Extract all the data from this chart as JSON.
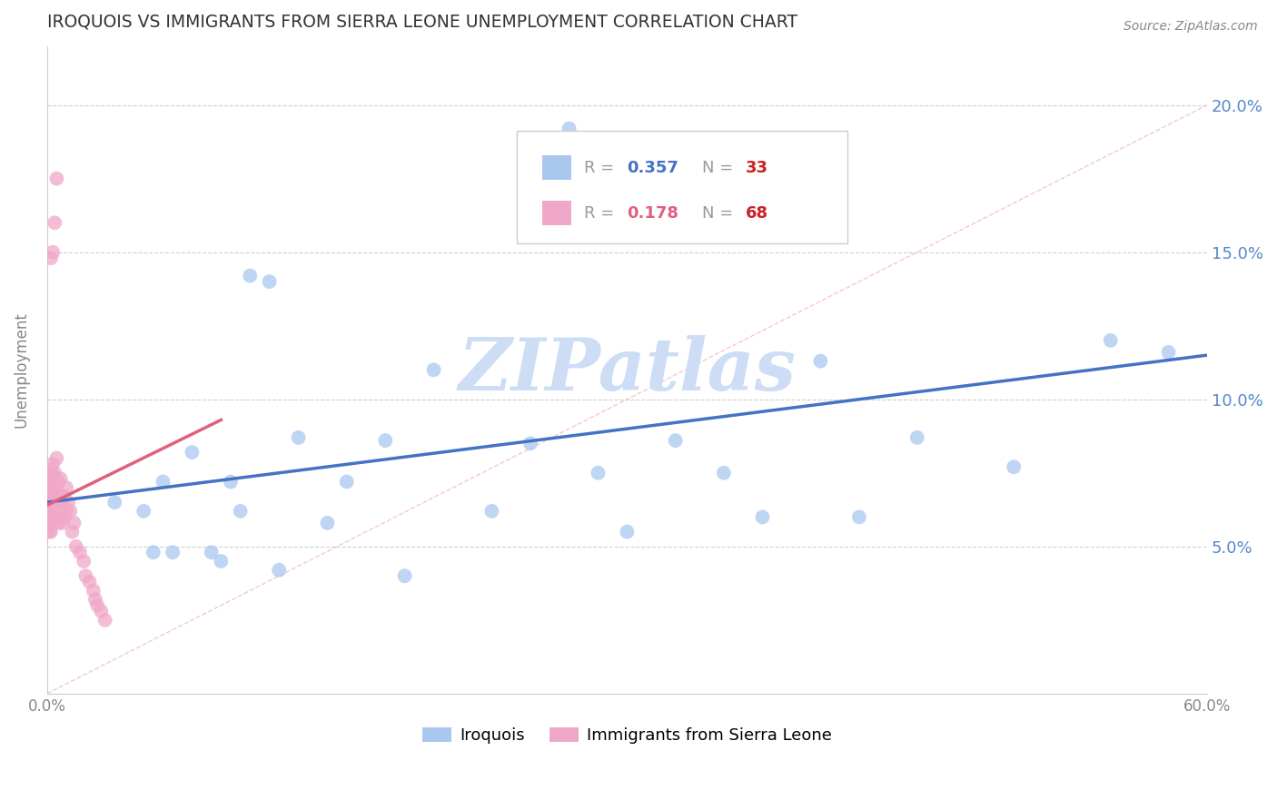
{
  "title": "IROQUOIS VS IMMIGRANTS FROM SIERRA LEONE UNEMPLOYMENT CORRELATION CHART",
  "source": "Source: ZipAtlas.com",
  "ylabel": "Unemployment",
  "blue_color": "#a8c8f0",
  "pink_color": "#f0a8c8",
  "blue_line_color": "#4472c4",
  "pink_line_color": "#e06080",
  "diagonal_color": "#e8c0c8",
  "watermark_color": "#ccddf5",
  "xlim": [
    0.0,
    0.6
  ],
  "ylim": [
    0.0,
    0.22
  ],
  "iroquois_x": [
    0.27,
    0.035,
    0.05,
    0.055,
    0.06,
    0.075,
    0.095,
    0.105,
    0.115,
    0.13,
    0.145,
    0.155,
    0.175,
    0.2,
    0.23,
    0.25,
    0.285,
    0.3,
    0.325,
    0.35,
    0.37,
    0.4,
    0.42,
    0.45,
    0.5,
    0.55,
    0.58,
    0.065,
    0.085,
    0.09,
    0.1,
    0.12,
    0.185
  ],
  "iroquois_y": [
    0.192,
    0.065,
    0.062,
    0.048,
    0.072,
    0.082,
    0.072,
    0.142,
    0.14,
    0.087,
    0.058,
    0.072,
    0.086,
    0.11,
    0.062,
    0.085,
    0.075,
    0.055,
    0.086,
    0.075,
    0.06,
    0.113,
    0.06,
    0.087,
    0.077,
    0.12,
    0.116,
    0.048,
    0.048,
    0.045,
    0.062,
    0.042,
    0.04
  ],
  "sl_x": [
    0.001,
    0.001,
    0.001,
    0.001,
    0.001,
    0.001,
    0.001,
    0.001,
    0.001,
    0.001,
    0.001,
    0.001,
    0.001,
    0.001,
    0.002,
    0.002,
    0.002,
    0.002,
    0.002,
    0.002,
    0.002,
    0.002,
    0.002,
    0.002,
    0.003,
    0.003,
    0.003,
    0.003,
    0.003,
    0.003,
    0.004,
    0.004,
    0.004,
    0.004,
    0.005,
    0.005,
    0.005,
    0.005,
    0.006,
    0.006,
    0.006,
    0.007,
    0.007,
    0.007,
    0.008,
    0.008,
    0.009,
    0.009,
    0.01,
    0.01,
    0.011,
    0.012,
    0.013,
    0.014,
    0.015,
    0.017,
    0.019,
    0.02,
    0.022,
    0.024,
    0.025,
    0.026,
    0.028,
    0.03,
    0.002,
    0.003,
    0.004,
    0.005
  ],
  "sl_y": [
    0.06,
    0.062,
    0.063,
    0.065,
    0.066,
    0.067,
    0.068,
    0.07,
    0.071,
    0.072,
    0.058,
    0.055,
    0.057,
    0.059,
    0.062,
    0.063,
    0.065,
    0.068,
    0.07,
    0.072,
    0.055,
    0.057,
    0.074,
    0.076,
    0.058,
    0.062,
    0.066,
    0.07,
    0.074,
    0.078,
    0.06,
    0.065,
    0.07,
    0.075,
    0.06,
    0.065,
    0.07,
    0.08,
    0.058,
    0.065,
    0.072,
    0.06,
    0.067,
    0.073,
    0.058,
    0.065,
    0.06,
    0.067,
    0.062,
    0.07,
    0.065,
    0.062,
    0.055,
    0.058,
    0.05,
    0.048,
    0.045,
    0.04,
    0.038,
    0.035,
    0.032,
    0.03,
    0.028,
    0.025,
    0.148,
    0.15,
    0.16,
    0.175
  ]
}
